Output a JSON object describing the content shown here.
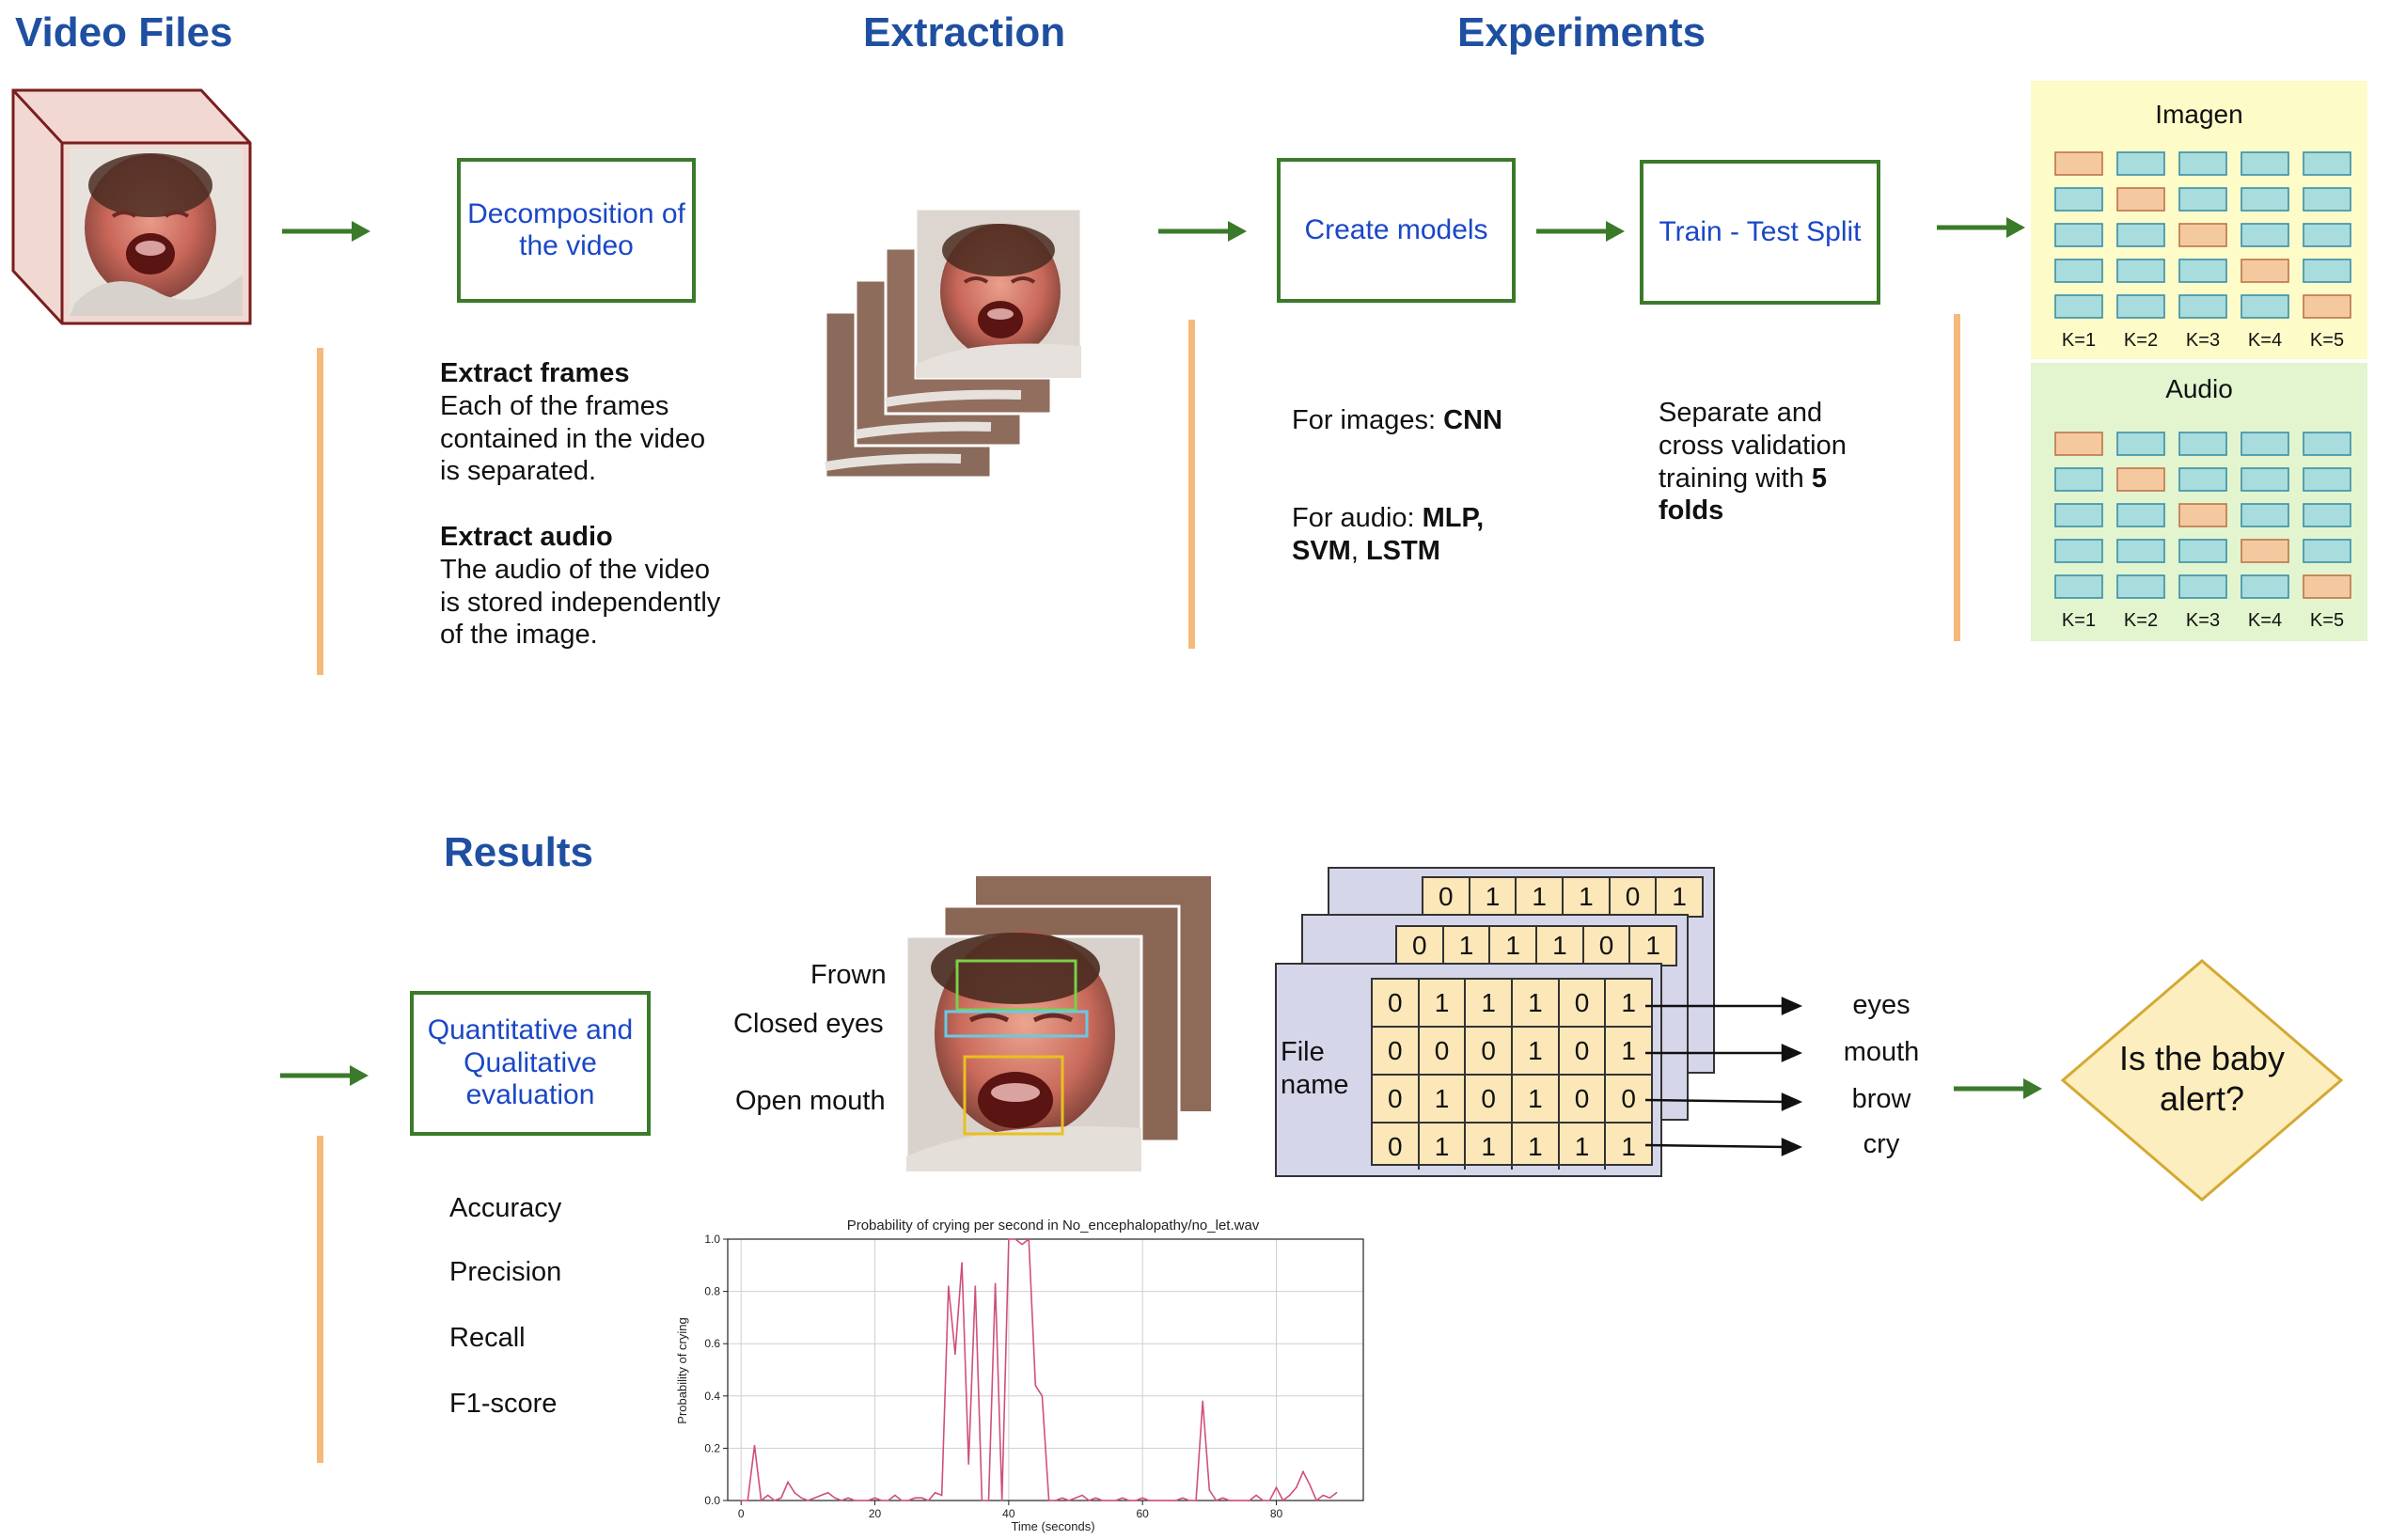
{
  "sections": {
    "video_files": "Video Files",
    "extraction": "Extraction",
    "experiments": "Experiments",
    "results": "Results"
  },
  "boxes": {
    "decomposition": "Decomposition of the video",
    "create_models": "Create models",
    "train_test": "Train - Test Split",
    "quant_qual": "Quantitative and Qualitative evaluation",
    "baby_alert": "Is the baby alert?"
  },
  "extract_frames": {
    "title": "Extract frames",
    "line1": "Each of the frames",
    "line2": "contained in the video",
    "line3": "is separated."
  },
  "extract_audio": {
    "title": "Extract audio",
    "line1": "The audio of the video",
    "line2": "is stored independently",
    "line3": "of the image."
  },
  "models": {
    "images_prefix": "For images: ",
    "images_model": "CNN",
    "audio_prefix": "For audio: ",
    "audio_model1": "MLP,",
    "audio_model2": "SVM",
    "audio_sep": ", ",
    "audio_model3": "LSTM"
  },
  "split": {
    "line1": "Separate and",
    "line2": "cross validation",
    "line3_prefix": "training with ",
    "line3_bold": "5",
    "line4_bold": "folds"
  },
  "kfold": {
    "imagen_title": "Imagen",
    "audio_title": "Audio",
    "labels": [
      "K=1",
      "K=2",
      "K=3",
      "K=4",
      "K=5"
    ],
    "imagen_bg": "#fdfbc8",
    "audio_bg": "#e2f5cf",
    "train_color": "#a9dcdc",
    "test_color": "#f5c9a0"
  },
  "face_features": {
    "frown": "Frown",
    "closed_eyes": "Closed eyes",
    "open_mouth": "Open mouth"
  },
  "metrics": [
    "Accuracy",
    "Precision",
    "Recall",
    "F1-score"
  ],
  "matrix": {
    "file_label_1": "File",
    "file_label_2": "name",
    "back_row": [
      "0",
      "1",
      "1",
      "1",
      "0",
      "1"
    ],
    "mid_row": [
      "0",
      "1",
      "1",
      "1",
      "0",
      "1"
    ],
    "rows": [
      [
        "0",
        "1",
        "1",
        "1",
        "0",
        "1"
      ],
      [
        "0",
        "0",
        "0",
        "1",
        "0",
        "1"
      ],
      [
        "0",
        "1",
        "0",
        "1",
        "0",
        "0"
      ],
      [
        "0",
        "1",
        "1",
        "1",
        "1",
        "1"
      ]
    ],
    "outputs": [
      "eyes",
      "mouth",
      "brow",
      "cry"
    ]
  },
  "chart_data": {
    "type": "line",
    "title": "Probability of crying per second in No_encephalopathy/no_let.wav",
    "xlabel": "Time (seconds)",
    "ylabel": "Probability of crying",
    "xlim": [
      -2,
      93
    ],
    "ylim": [
      0,
      1.0
    ],
    "xticks": [
      0,
      20,
      40,
      60,
      80
    ],
    "yticks": [
      0.0,
      0.2,
      0.4,
      0.6,
      0.8,
      1.0
    ],
    "ytick_labels": [
      "0.0",
      "0.2",
      "0.4",
      "0.6",
      "0.8",
      "1.0"
    ],
    "grid": true,
    "color": "#d0507a",
    "x": [
      0,
      1,
      2,
      3,
      4,
      5,
      6,
      7,
      8,
      9,
      10,
      11,
      12,
      13,
      14,
      15,
      16,
      17,
      18,
      19,
      20,
      21,
      22,
      23,
      24,
      25,
      26,
      27,
      28,
      29,
      30,
      31,
      32,
      33,
      34,
      35,
      36,
      37,
      38,
      39,
      40,
      41,
      42,
      43,
      44,
      45,
      46,
      47,
      48,
      49,
      50,
      51,
      52,
      53,
      54,
      55,
      56,
      57,
      58,
      59,
      60,
      61,
      62,
      63,
      64,
      65,
      66,
      67,
      68,
      69,
      70,
      71,
      72,
      73,
      74,
      75,
      76,
      77,
      78,
      79,
      80,
      81,
      82,
      83,
      84,
      85,
      86,
      87,
      88,
      89
    ],
    "values": [
      0.0,
      0.0,
      0.21,
      0.0,
      0.02,
      0.0,
      0.01,
      0.07,
      0.03,
      0.01,
      0.0,
      0.01,
      0.02,
      0.03,
      0.01,
      0.0,
      0.01,
      0.0,
      0.0,
      0.0,
      0.01,
      0.0,
      0.0,
      0.02,
      0.0,
      0.0,
      0.01,
      0.01,
      0.0,
      0.03,
      0.02,
      0.82,
      0.56,
      0.91,
      0.14,
      0.82,
      0.0,
      0.0,
      0.83,
      0.0,
      1.0,
      1.0,
      0.98,
      1.0,
      0.44,
      0.4,
      0.0,
      0.0,
      0.01,
      0.0,
      0.01,
      0.02,
      0.0,
      0.01,
      0.0,
      0.0,
      0.0,
      0.01,
      0.0,
      0.0,
      0.01,
      0.0,
      0.0,
      0.0,
      0.0,
      0.0,
      0.01,
      0.0,
      0.0,
      0.38,
      0.04,
      0.0,
      0.01,
      0.0,
      0.0,
      0.0,
      0.0,
      0.02,
      0.0,
      0.0,
      0.05,
      0.0,
      0.02,
      0.05,
      0.11,
      0.06,
      0.0,
      0.02,
      0.01,
      0.03
    ]
  }
}
